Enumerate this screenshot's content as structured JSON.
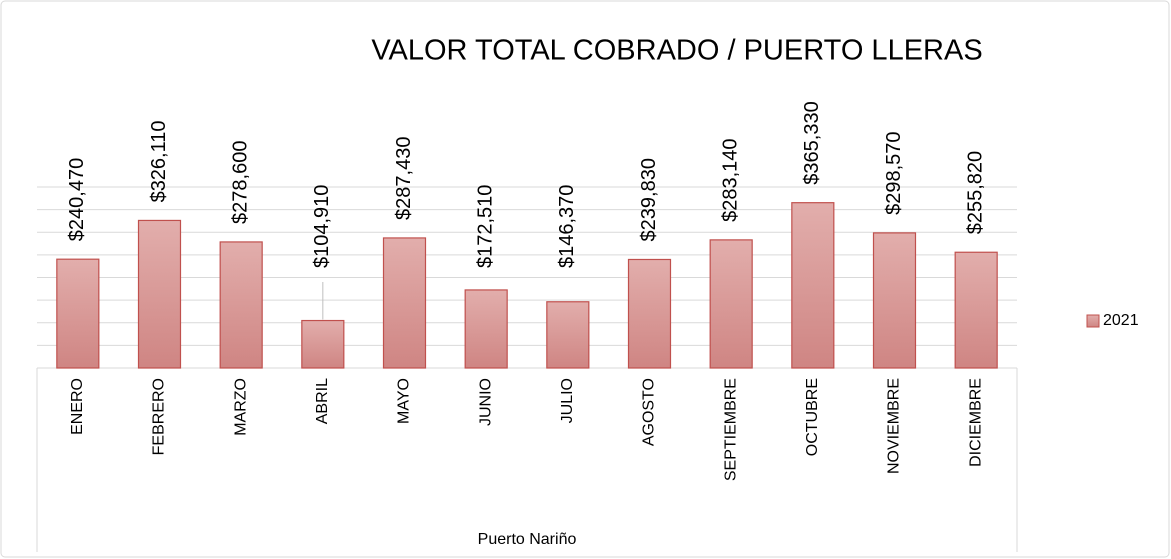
{
  "chart_data": {
    "type": "bar",
    "title": "VALOR TOTAL COBRADO / PUERTO LLERAS",
    "categories": [
      "ENERO",
      "FEBRERO",
      "MARZO",
      "ABRIL",
      "MAYO",
      "JUNIO",
      "JULIO",
      "AGOSTO",
      "SEPTIEMBRE",
      "OCTUBRE",
      "NOVIEMBRE",
      "DICIEMBRE"
    ],
    "group_label": "Puerto Nariño",
    "series": [
      {
        "name": "2021",
        "color": "#d99694",
        "values": [
          240470,
          326110,
          278600,
          104910,
          287430,
          172510,
          146370,
          239830,
          283140,
          365330,
          298570,
          255820
        ],
        "value_labels": [
          "$240,470",
          "$326,110",
          "$278,600",
          "$104,910",
          "$287,430",
          "$172,510",
          "$146,370",
          "$239,830",
          "$283,140",
          "$365,330",
          "$298,570",
          "$255,820"
        ]
      }
    ],
    "ylim": [
      0,
      400000
    ],
    "yticks": [
      0,
      50000,
      100000,
      150000,
      200000,
      250000,
      300000,
      350000,
      400000
    ],
    "grid": true,
    "legend": "right"
  }
}
